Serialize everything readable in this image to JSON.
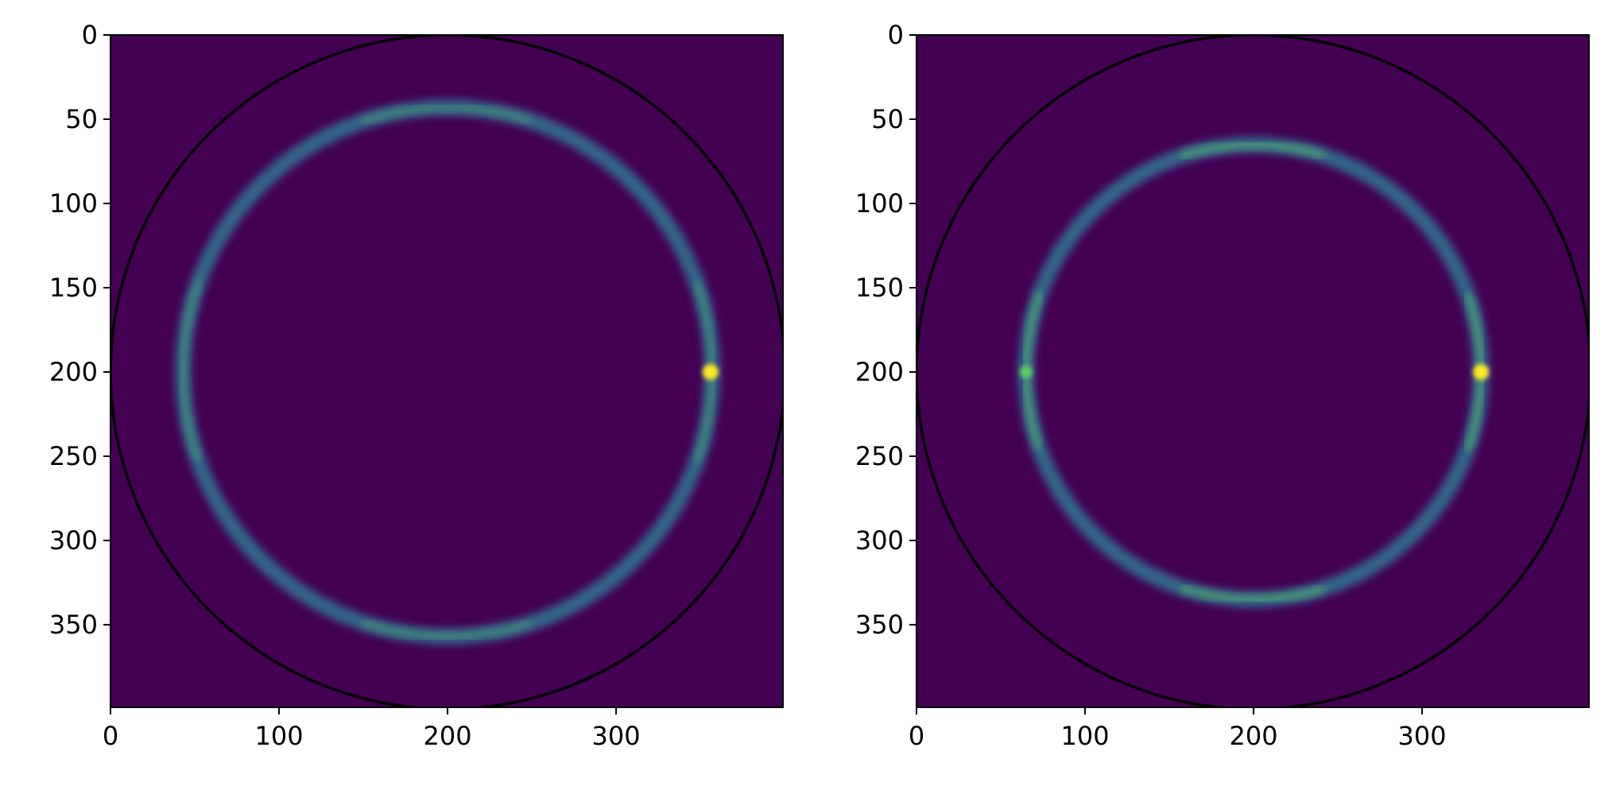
{
  "colors": {
    "background": "#440154",
    "ring_low": "#3b528b",
    "ring_mid": "#21918c",
    "ring_high": "#5ec962",
    "peak": "#fde725",
    "boundary": "#000000"
  },
  "chart_data": [
    {
      "type": "heatmap",
      "title": "",
      "xlabel": "",
      "ylabel": "",
      "xlim": [
        0,
        399
      ],
      "ylim": [
        399,
        0
      ],
      "x_ticks": [
        0,
        100,
        200,
        300
      ],
      "y_ticks": [
        0,
        50,
        100,
        150,
        200,
        250,
        300,
        350
      ],
      "x_tick_labels": [
        "0",
        "100",
        "200",
        "300"
      ],
      "y_tick_labels": [
        "0",
        "50",
        "100",
        "150",
        "200",
        "250",
        "300",
        "350"
      ],
      "grid": false,
      "colormap": "viridis",
      "boundary_circle": {
        "center": [
          200,
          200
        ],
        "radius": 200
      },
      "ring": {
        "center": [
          200,
          200
        ],
        "radius_x": 157,
        "radius_y": 157,
        "peak": [
          356,
          200
        ]
      }
    },
    {
      "type": "heatmap",
      "title": "",
      "xlabel": "",
      "ylabel": "",
      "xlim": [
        0,
        399
      ],
      "ylim": [
        399,
        0
      ],
      "x_ticks": [
        0,
        100,
        200,
        300
      ],
      "y_ticks": [
        0,
        50,
        100,
        150,
        200,
        250,
        300,
        350
      ],
      "x_tick_labels": [
        "0",
        "100",
        "200",
        "300"
      ],
      "y_tick_labels": [
        "0",
        "50",
        "100",
        "150",
        "200",
        "250",
        "300",
        "350"
      ],
      "grid": false,
      "colormap": "viridis",
      "boundary_circle": {
        "center": [
          200,
          200
        ],
        "radius": 200
      },
      "ring": {
        "center": [
          200,
          200
        ],
        "radius_x": 135,
        "radius_y": 135,
        "peak": [
          335,
          200
        ]
      }
    }
  ]
}
